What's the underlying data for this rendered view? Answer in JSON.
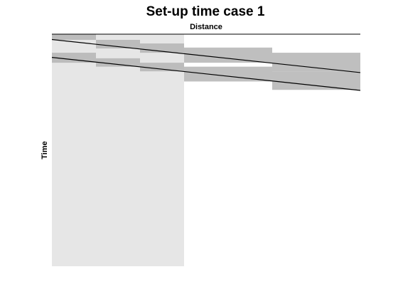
{
  "chart_data": {
    "type": "area",
    "title": "Set-up time case 1",
    "xlabel": "Distance",
    "ylabel": "Time",
    "xlim": [
      0,
      7
    ],
    "ylim": [
      0,
      13
    ],
    "x_axis_position": "top",
    "y_axis_direction": "down",
    "grid": false,
    "legend": "none",
    "colors": {
      "background_region": "#e6e6e6",
      "occupation_block": "#b4b4b4",
      "occupation_overlap": "#a0a0a0",
      "train_path": "#000000",
      "axis": "#000000"
    },
    "background_regions": [
      {
        "x": [
          0,
          3
        ],
        "y": [
          0,
          13
        ]
      }
    ],
    "blocks": [
      {
        "section": 1,
        "x": [
          0,
          1
        ],
        "y": [
          0.0,
          0.32
        ]
      },
      {
        "section": 1,
        "x": [
          0,
          1
        ],
        "y": [
          1.04,
          1.6
        ]
      },
      {
        "section": 2,
        "x": [
          1,
          2
        ],
        "y": [
          0.32,
          0.8
        ]
      },
      {
        "section": 2,
        "x": [
          1,
          2
        ],
        "y": [
          1.35,
          1.82
        ]
      },
      {
        "section": 3,
        "x": [
          2,
          3
        ],
        "y": [
          0.52,
          1.04
        ]
      },
      {
        "section": 3,
        "x": [
          2,
          3
        ],
        "y": [
          1.6,
          2.08
        ]
      },
      {
        "section": 4,
        "x": [
          3,
          5
        ],
        "y": [
          0.75,
          1.6
        ]
      },
      {
        "section": 4,
        "x": [
          3,
          5
        ],
        "y": [
          1.82,
          2.65
        ]
      },
      {
        "section": 5,
        "x": [
          5,
          7
        ],
        "y": [
          1.04,
          2.08
        ]
      },
      {
        "section": 5,
        "x": [
          5,
          7
        ],
        "y": [
          2.08,
          3.12
        ]
      }
    ],
    "series": [
      {
        "x": [
          0,
          7
        ],
        "y": [
          0.3,
          2.15
        ]
      },
      {
        "x": [
          0,
          7
        ],
        "y": [
          1.3,
          3.15
        ]
      }
    ]
  }
}
